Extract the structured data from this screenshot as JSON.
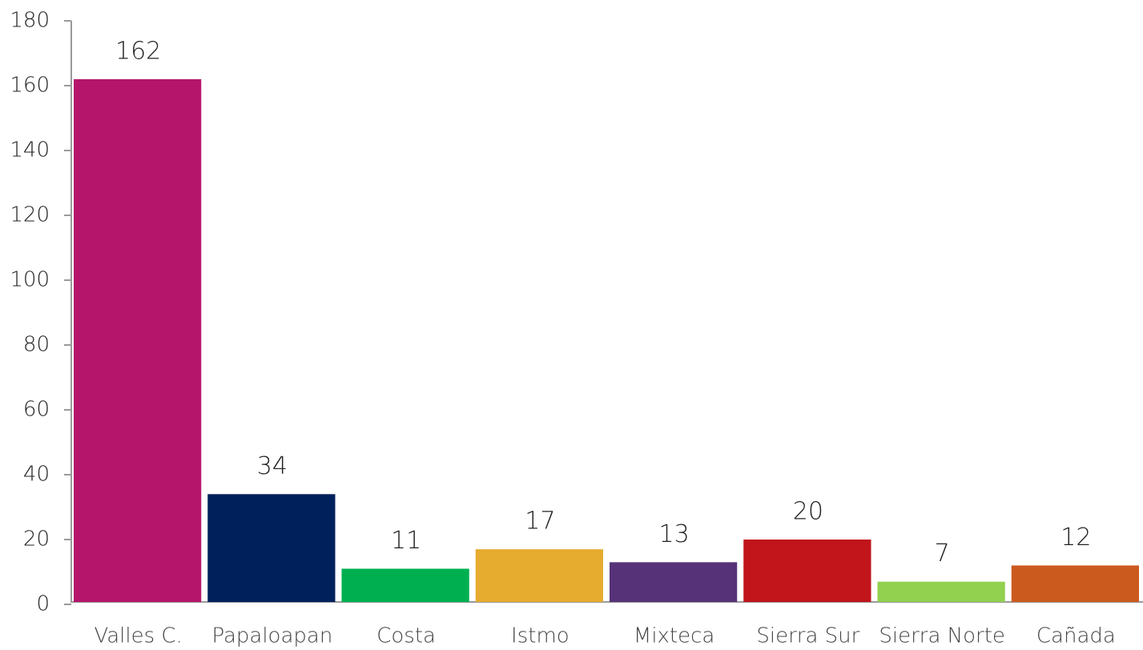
{
  "chart_data": {
    "type": "bar",
    "categories": [
      "Valles C.",
      "Papaloapan",
      "Costa",
      "Istmo",
      "Mixteca",
      "Sierra Sur",
      "Sierra Norte",
      "Cañada"
    ],
    "values": [
      162,
      34,
      11,
      17,
      13,
      20,
      7,
      12
    ],
    "colors": [
      "#b5156b",
      "#00205c",
      "#00b050",
      "#e5ac2f",
      "#563378",
      "#c1141b",
      "#92d050",
      "#cb5a1e"
    ],
    "ylim": [
      0,
      180
    ],
    "yticks": [
      0,
      20,
      40,
      60,
      80,
      100,
      120,
      140,
      160,
      180
    ],
    "grid": false
  }
}
